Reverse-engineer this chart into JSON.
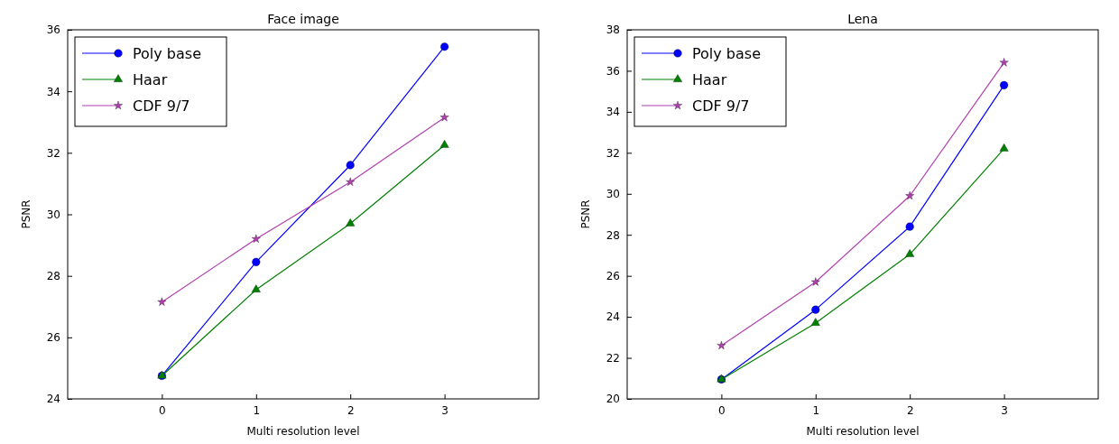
{
  "chart_data": [
    {
      "type": "line",
      "title": "Face image",
      "xlabel": "Multi resolution level",
      "ylabel": "PSNR",
      "x": [
        0,
        1,
        2,
        3
      ],
      "xlim": [
        -1,
        4
      ],
      "xticks": [
        0,
        1,
        2,
        3
      ],
      "ylim": [
        24,
        36
      ],
      "yticks": [
        24,
        26,
        28,
        30,
        32,
        34,
        36
      ],
      "legend": "top left",
      "grid": false,
      "series": [
        {
          "name": "Poly base",
          "color": "#0000ff",
          "marker": "circle",
          "values": [
            24.75,
            28.45,
            31.6,
            35.45
          ]
        },
        {
          "name": "Haar",
          "color": "#008000",
          "marker": "triangle",
          "values": [
            24.75,
            27.55,
            29.7,
            32.25
          ]
        },
        {
          "name": "CDF 9/7",
          "color": "#b040b0",
          "marker": "star",
          "values": [
            27.15,
            29.2,
            31.05,
            33.15
          ]
        }
      ]
    },
    {
      "type": "line",
      "title": "Lena",
      "xlabel": "Multi resolution level",
      "ylabel": "PSNR",
      "x": [
        0,
        1,
        2,
        3
      ],
      "xlim": [
        -1,
        4
      ],
      "xticks": [
        0,
        1,
        2,
        3
      ],
      "ylim": [
        20,
        38
      ],
      "yticks": [
        20,
        22,
        24,
        26,
        28,
        30,
        32,
        34,
        36,
        38
      ],
      "legend": "top left",
      "grid": false,
      "series": [
        {
          "name": "Poly base",
          "color": "#0000ff",
          "marker": "circle",
          "values": [
            20.95,
            24.35,
            28.4,
            35.3
          ]
        },
        {
          "name": "Haar",
          "color": "#008000",
          "marker": "triangle",
          "values": [
            20.95,
            23.7,
            27.05,
            32.2
          ]
        },
        {
          "name": "CDF 9/7",
          "color": "#b040b0",
          "marker": "star",
          "values": [
            22.6,
            25.7,
            29.9,
            36.4
          ]
        }
      ]
    }
  ]
}
